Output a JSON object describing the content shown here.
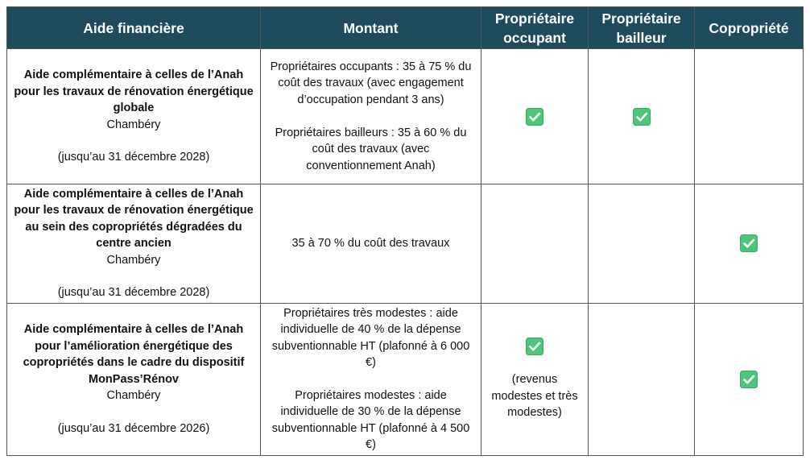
{
  "table": {
    "header": [
      "Aide financière",
      "Montant",
      "Propriétaire occupant",
      "Propriétaire bailleur",
      "Copropriété"
    ],
    "rows": [
      {
        "aide": {
          "title": "Aide complémentaire à celles de l’Anah pour les travaux de rénovation énergétique globale",
          "place": "Chambéry",
          "date": "(jusqu’au 31 décembre 2028)"
        },
        "montant": [
          "Propriétaires occupants : 35 à 75 % du coût des travaux (avec engagement d’occupation pendant 3 ans)",
          "Propriétaires bailleurs : 35 à 60 % du coût des travaux (avec conventionnement Anah)"
        ]
      },
      {
        "aide": {
          "title": "Aide complémentaire à celles de l’Anah pour les travaux de rénovation énergétique au sein des copropriétés dégradées du centre ancien",
          "place": "Chambéry",
          "date": "(jusqu’au 31 décembre 2028)"
        },
        "montant": [
          "35 à 70 % du coût des travaux"
        ]
      },
      {
        "aide": {
          "title": "Aide complémentaire à celles de l’Anah pour l’amélioration énergétique des copropriétés dans le cadre du dispositif MonPass’Rénov",
          "place": "Chambéry",
          "date": "(jusqu’au 31 décembre 2026)"
        },
        "montant": [
          "Propriétaires très modestes : aide individuelle de 40 % de la dépense subventionnable HT (plafonné à 6 000 €)",
          "Propriétaires modestes : aide individuelle de 30 % de la dépense subventionnable HT (plafonné à 4 500 €)"
        ],
        "occupant_note": "(revenus modestes et très modestes)"
      }
    ]
  }
}
